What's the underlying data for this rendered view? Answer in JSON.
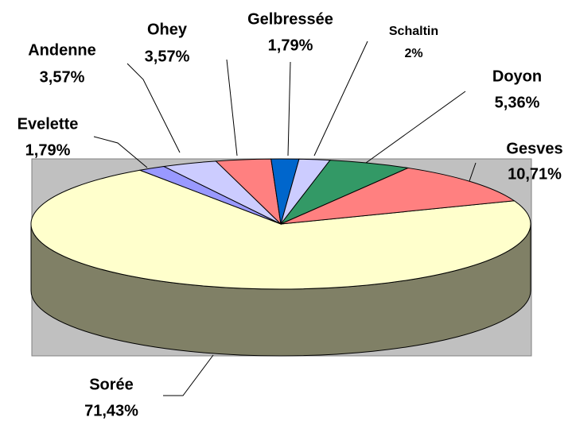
{
  "chart_data": {
    "type": "pie3d",
    "categories": [
      "Sorée",
      "Evelette",
      "Andenne",
      "Ohey",
      "Gelbressée",
      "Schaltin",
      "Doyon",
      "Gesves"
    ],
    "values": [
      71.43,
      1.79,
      3.57,
      3.57,
      1.79,
      2,
      5.36,
      10.71
    ],
    "value_labels": [
      "71,43%",
      "1,79%",
      "3,57%",
      "3,57%",
      "1,79%",
      "2%",
      "5,36%",
      "10,71%"
    ],
    "colors": [
      "#ffffcc",
      "#9999ff",
      "#ccccff",
      "#ff8080",
      "#0066cc",
      "#ccccff",
      "#339966",
      "#ff8080"
    ]
  }
}
